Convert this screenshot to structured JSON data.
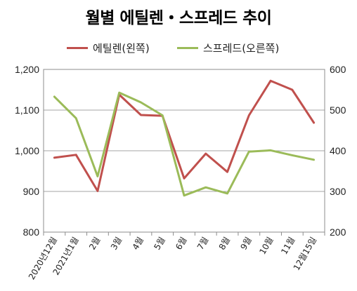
{
  "chart_data": {
    "type": "line",
    "title": "월별 에틸렌・스프레드 추이",
    "categories": [
      "2020년12월",
      "2021년1월",
      "2월",
      "3월",
      "4월",
      "5월",
      "6월",
      "7월",
      "8월",
      "9월",
      "10월",
      "11월",
      "12월15일"
    ],
    "series": [
      {
        "name": "에틸렌(왼쪽)",
        "axis": "left",
        "color": "#c0504d",
        "values": [
          983,
          990,
          901,
          1138,
          1088,
          1086,
          932,
          993,
          948,
          1087,
          1172,
          1150,
          1069
        ]
      },
      {
        "name": "스프레드(오른쪽)",
        "axis": "right",
        "color": "#9bbb59",
        "values": [
          533,
          480,
          337,
          543,
          519,
          487,
          290,
          310,
          295,
          398,
          401,
          389,
          378
        ]
      }
    ],
    "y_left": {
      "min": 800,
      "max": 1200,
      "ticks": [
        "800",
        "900",
        "1,000",
        "1,100",
        "1,200"
      ]
    },
    "y_right": {
      "min": 200,
      "max": 600,
      "ticks": [
        "200",
        "300",
        "400",
        "500",
        "600"
      ]
    },
    "grid": "horizontal",
    "legend_position": "top"
  }
}
